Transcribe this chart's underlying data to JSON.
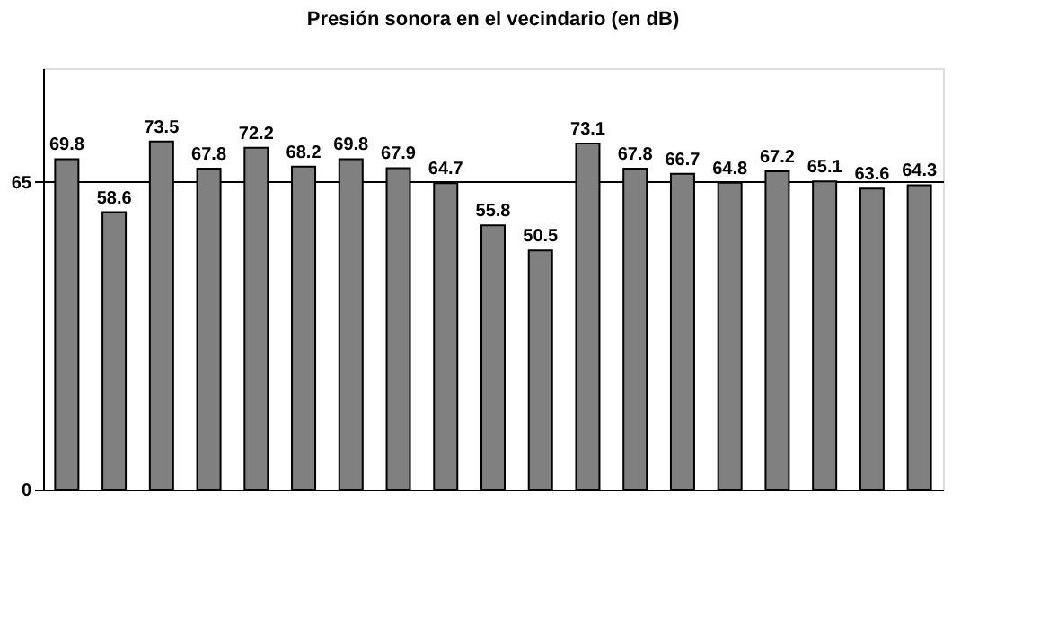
{
  "chart_data": {
    "type": "bar",
    "title": "Presión sonora en el vecindario (en dB)",
    "categories": [
      null,
      null,
      null,
      null,
      null,
      null,
      null,
      null,
      null,
      null,
      null,
      null,
      null,
      null,
      null,
      null,
      null,
      null,
      null
    ],
    "values": [
      69.8,
      58.6,
      73.5,
      67.8,
      72.2,
      68.2,
      69.8,
      67.9,
      64.7,
      55.8,
      50.5,
      73.1,
      67.8,
      66.7,
      64.8,
      67.2,
      65.1,
      63.6,
      64.3
    ],
    "color": "#808080",
    "ylim": [
      0,
      89
    ],
    "yticks": [
      0,
      65
    ],
    "grid": "y",
    "data_labels": true
  }
}
